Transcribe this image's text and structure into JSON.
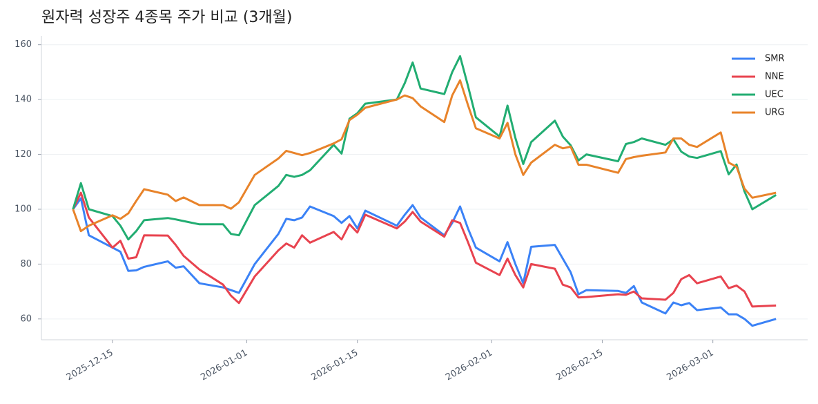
{
  "chart_data": {
    "type": "line",
    "title": "원자력 성장주 4종목 주가 비교 (3개월)",
    "x": [
      "2025-12-10",
      "2025-12-11",
      "2025-12-12",
      "2025-12-15",
      "2025-12-16",
      "2025-12-17",
      "2025-12-18",
      "2025-12-19",
      "2025-12-22",
      "2025-12-23",
      "2025-12-24",
      "2025-12-26",
      "2025-12-29",
      "2025-12-30",
      "2025-12-31",
      "2026-01-02",
      "2026-01-05",
      "2026-01-06",
      "2026-01-07",
      "2026-01-08",
      "2026-01-09",
      "2026-01-12",
      "2026-01-13",
      "2026-01-14",
      "2026-01-15",
      "2026-01-16",
      "2026-01-20",
      "2026-01-21",
      "2026-01-22",
      "2026-01-23",
      "2026-01-26",
      "2026-01-27",
      "2026-01-28",
      "2026-01-29",
      "2026-01-30",
      "2026-02-02",
      "2026-02-03",
      "2026-02-04",
      "2026-02-05",
      "2026-02-06",
      "2026-02-09",
      "2026-02-10",
      "2026-02-11",
      "2026-02-12",
      "2026-02-13",
      "2026-02-17",
      "2026-02-18",
      "2026-02-19",
      "2026-02-20",
      "2026-02-23",
      "2026-02-24",
      "2026-02-25",
      "2026-02-26",
      "2026-02-27",
      "2026-03-02",
      "2026-03-03",
      "2026-03-04",
      "2026-03-05",
      "2026-03-06",
      "2026-03-09"
    ],
    "series": [
      {
        "name": "SMR",
        "color": "#3b82f6",
        "values": [
          100,
          104,
          90.5,
          86,
          84.5,
          77.5,
          77.7,
          79,
          81,
          78.7,
          79.2,
          73,
          71.5,
          70.5,
          69.5,
          80,
          91,
          96.5,
          96,
          97,
          101,
          97.5,
          95,
          97.5,
          93,
          99.5,
          94,
          98,
          101.5,
          97,
          90.5,
          95,
          101,
          93,
          86,
          81,
          88,
          80,
          73,
          86.3,
          87,
          82,
          77,
          69,
          70.5,
          70.2,
          69.5,
          72,
          66,
          62,
          66,
          65,
          65.8,
          63.2,
          64.2,
          61.7,
          61.7,
          60,
          57.5,
          60
        ]
      },
      {
        "name": "NNE",
        "color": "#e8434f",
        "values": [
          100,
          106,
          97,
          86,
          88.5,
          82,
          82.5,
          90.5,
          90.4,
          87,
          83,
          78,
          72.5,
          68.5,
          65.8,
          75.5,
          85,
          87.5,
          86,
          90.5,
          87.8,
          91.7,
          89,
          94.5,
          91.5,
          98,
          93,
          95.5,
          99,
          95.5,
          90,
          96,
          95,
          88,
          80.5,
          76,
          82,
          76,
          71.5,
          80,
          78.3,
          72.5,
          71.5,
          67.8,
          68,
          69,
          68.8,
          70,
          67.5,
          67,
          69.5,
          74.5,
          76,
          73,
          75.5,
          71.2,
          72.2,
          70,
          64.5,
          64.9
        ]
      },
      {
        "name": "UEC",
        "color": "#22ad72",
        "values": [
          100,
          109.5,
          100,
          97.5,
          94,
          89,
          92,
          96,
          96.8,
          96.3,
          95.7,
          94.5,
          94.5,
          91,
          90.5,
          101.5,
          108.5,
          112.5,
          111.8,
          112.5,
          114.2,
          123.5,
          120.3,
          133,
          135,
          138.5,
          140,
          146,
          153.5,
          144,
          142,
          150,
          155.8,
          145,
          133.5,
          126.5,
          137.8,
          126,
          116.5,
          124.5,
          132.3,
          126.5,
          123.3,
          117.8,
          120,
          117.5,
          123.8,
          124.5,
          125.8,
          123.5,
          125.5,
          121,
          119.2,
          118.7,
          121.2,
          112.7,
          116.3,
          106.5,
          100,
          105.2
        ]
      },
      {
        "name": "URG",
        "color": "#e8832a",
        "values": [
          100,
          92,
          94,
          97.8,
          96.5,
          98.5,
          103,
          107.3,
          105.3,
          103,
          104.3,
          101.5,
          101.5,
          100.2,
          102.5,
          112.5,
          118.5,
          121.3,
          120.5,
          119.7,
          120.5,
          124,
          125.5,
          132.5,
          134.5,
          137,
          140,
          141.5,
          140.5,
          137.5,
          131.8,
          141.5,
          147,
          138,
          129.5,
          125.8,
          131.5,
          120,
          112.5,
          117,
          123.5,
          122.2,
          122.8,
          116.2,
          116.2,
          113.3,
          118.3,
          119,
          119.5,
          120.7,
          125.8,
          125.8,
          123.5,
          122.7,
          128,
          117,
          115.5,
          107.5,
          104.2,
          106
        ]
      }
    ],
    "xlim": [
      "2025-12-06",
      "2026-03-13"
    ],
    "xticks": [
      "2025-12-15",
      "2026-01-01",
      "2026-01-15",
      "2026-02-01",
      "2026-02-15",
      "2026-03-01"
    ],
    "ylim": [
      52.4,
      163.2
    ],
    "yticks": [
      60,
      80,
      100,
      120,
      140,
      160
    ],
    "grid": true,
    "legend": "upper right"
  }
}
